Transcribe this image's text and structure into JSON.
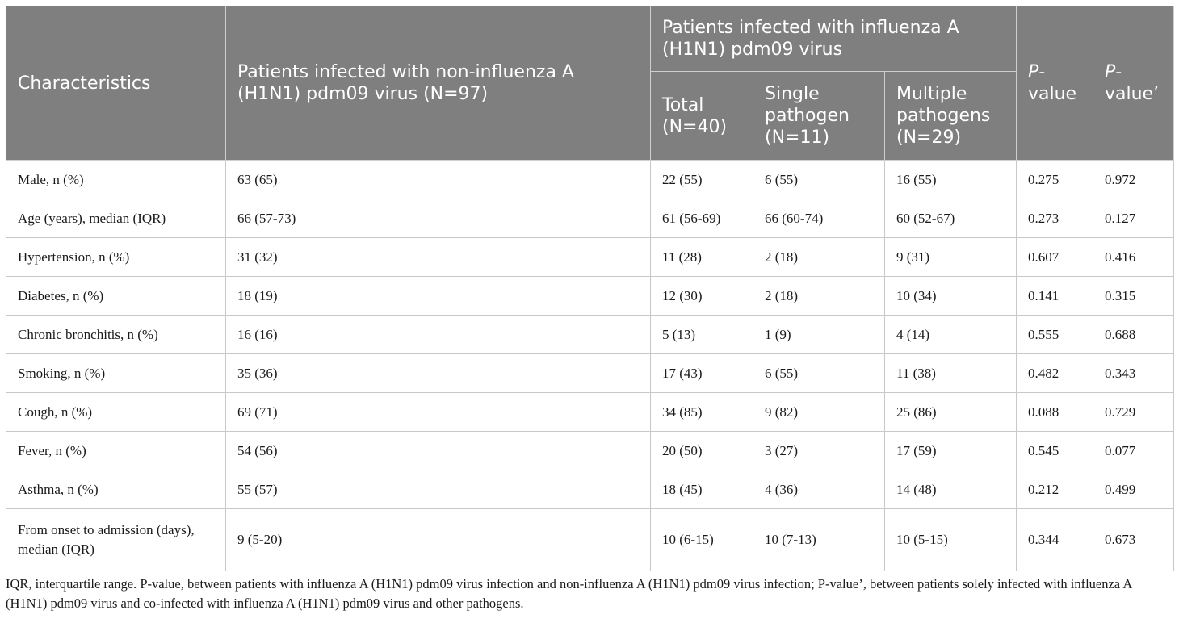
{
  "header": {
    "characteristics": "Characteristics",
    "non_influenza": "Patients infected with non-influenza A (H1N1) pdm09 virus (N=97)",
    "influenza_group": "Patients infected with influenza A (H1N1) pdm09 virus",
    "total": "Total (N=40)",
    "single": "Single pathogen (N=11)",
    "multiple": "Multiple pathogens (N=29)",
    "pvalue_p": "P",
    "pvalue_rest": "-value",
    "pvalue2_p": "P",
    "pvalue2_rest": "-value’"
  },
  "rows": [
    {
      "label": "Male, n (%)",
      "non": "63 (65)",
      "total": "22 (55)",
      "single": "6 (55)",
      "multiple": "16 (55)",
      "p": "0.275",
      "p2": "0.972"
    },
    {
      "label": "Age (years), median (IQR)",
      "non": "66 (57-73)",
      "total": "61 (56-69)",
      "single": "66 (60-74)",
      "multiple": "60 (52-67)",
      "p": "0.273",
      "p2": "0.127"
    },
    {
      "label": "Hypertension, n (%)",
      "non": "31 (32)",
      "total": "11 (28)",
      "single": "2 (18)",
      "multiple": "9 (31)",
      "p": "0.607",
      "p2": "0.416"
    },
    {
      "label": "Diabetes, n (%)",
      "non": "18 (19)",
      "total": "12 (30)",
      "single": "2 (18)",
      "multiple": "10 (34)",
      "p": "0.141",
      "p2": "0.315"
    },
    {
      "label": "Chronic bronchitis, n (%)",
      "non": "16 (16)",
      "total": "5 (13)",
      "single": "1 (9)",
      "multiple": "4 (14)",
      "p": "0.555",
      "p2": "0.688"
    },
    {
      "label": "Smoking, n (%)",
      "non": "35 (36)",
      "total": "17 (43)",
      "single": "6 (55)",
      "multiple": "11 (38)",
      "p": "0.482",
      "p2": "0.343"
    },
    {
      "label": "Cough, n (%)",
      "non": "69 (71)",
      "total": "34 (85)",
      "single": "9 (82)",
      "multiple": "25 (86)",
      "p": "0.088",
      "p2": "0.729"
    },
    {
      "label": "Fever, n (%)",
      "non": "54 (56)",
      "total": "20 (50)",
      "single": "3 (27)",
      "multiple": "17 (59)",
      "p": "0.545",
      "p2": "0.077"
    },
    {
      "label": "Asthma, n (%)",
      "non": "55 (57)",
      "total": "18 (45)",
      "single": "4 (36)",
      "multiple": "14 (48)",
      "p": "0.212",
      "p2": "0.499"
    },
    {
      "label": "From onset to admission (days), median (IQR)",
      "non": "9 (5-20)",
      "total": "10 (6-15)",
      "single": "10 (7-13)",
      "multiple": "10 (5-15)",
      "p": "0.344",
      "p2": "0.673"
    }
  ],
  "footnote": "IQR, interquartile range. P-value, between patients with influenza A (H1N1) pdm09 virus infection and non-influenza A (H1N1) pdm09 virus infection; P-value’, between patients solely infected with influenza A (H1N1) pdm09 virus and co-infected with influenza A (H1N1) pdm09 virus and other pathogens.",
  "colors": {
    "header_bg": "#7f7f7f",
    "header_text": "#ffffff",
    "grid": "#c8c8c8"
  }
}
